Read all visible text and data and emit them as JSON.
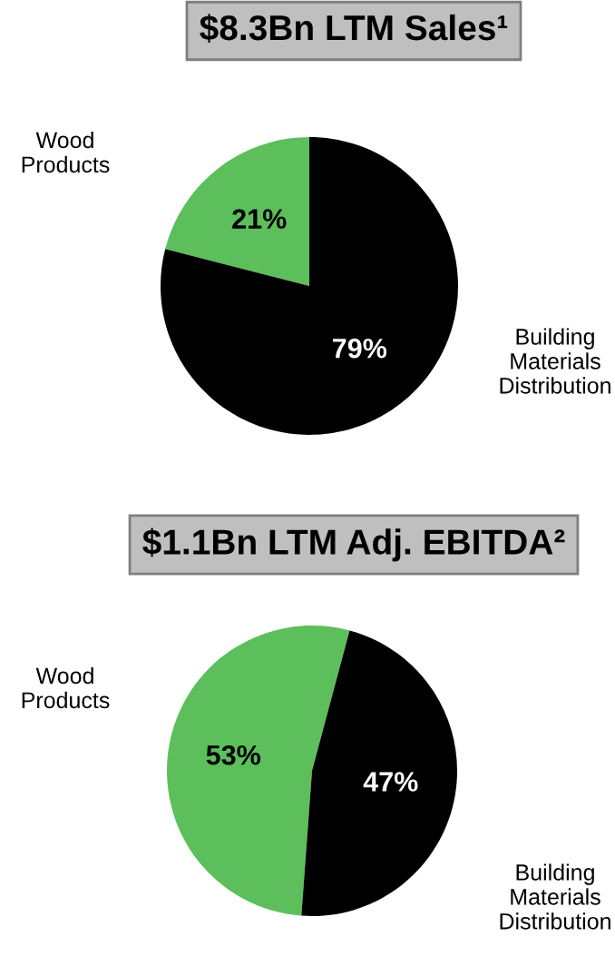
{
  "chart_data": [
    {
      "type": "pie",
      "title": "$8.3Bn LTM Sales¹",
      "categories": [
        "Wood Products",
        "Building Materials Distribution"
      ],
      "values": [
        21,
        79
      ],
      "colors": [
        "#5cbf5c",
        "#000000"
      ],
      "value_labels": [
        "21%",
        "79%"
      ]
    },
    {
      "type": "pie",
      "title": "$1.1Bn LTM Adj. EBITDA²",
      "categories": [
        "Wood Products",
        "Building Materials Distribution"
      ],
      "values": [
        53,
        47
      ],
      "colors": [
        "#5cbf5c",
        "#000000"
      ],
      "value_labels": [
        "53%",
        "47%"
      ]
    }
  ]
}
